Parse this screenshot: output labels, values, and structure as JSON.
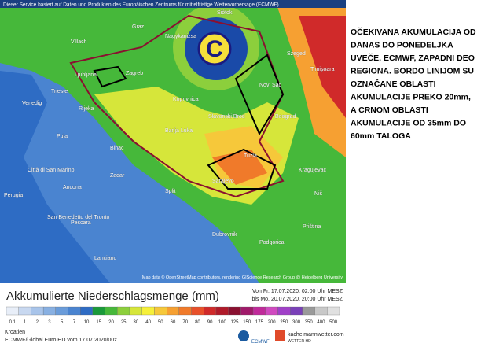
{
  "header": "Dieser Service basiert auf Daten und Produkten des Europäischen Zentrums für mittelfristige Wettervorhersage (ECMWF)",
  "cities": [
    "Graz",
    "Villach",
    "Siófok",
    "Nagykanizsa",
    "Ljubljana",
    "Zagreb",
    "Trieste",
    "Venedig",
    "Rijeka",
    "Pula",
    "Koprivnica",
    "Slavonski Brod",
    "Banja Luka",
    "Bihać",
    "Zadar",
    "Split",
    "Sarajevo",
    "Tuzla",
    "Beograd",
    "Novi Sad",
    "Szeged",
    "Timișoara",
    "Kragujevac",
    "Niš",
    "Priština",
    "Podgorica",
    "Dubrovnik",
    "Ancona",
    "Città di San Marino",
    "San Benedetto del Tronto",
    "Pescara",
    "Perugia",
    "Lanciano"
  ],
  "attribution": "Map data © OpenStreetMap contributors, rendering GIScience Research Group @ Heidelberg University",
  "note": [
    "OČEKIVANA AKUMULACIJA OD",
    "DANAS DO PONEDELJKA",
    "UVEČE, ECMWF, ZAPADNI DEO",
    "REGIONA. BORDO LINIJOM SU",
    "OZNAČANE OBLASTI",
    "AKUMULACIJE PREKO 20mm,",
    "A CRNOM OBLASTI",
    "AKUMULACIJE OD 35mm DO",
    "60mm TALOGA"
  ],
  "legend": {
    "title": "Akkumulierte Niederschlagsmenge (mm)",
    "from": "Von Fr. 17.07.2020, 02:00 Uhr MESZ",
    "to": "bis Mo. 20.07.2020, 20:00 Uhr MESZ",
    "values": [
      0.1,
      1,
      2,
      3,
      5,
      7,
      10,
      15,
      20,
      25,
      30,
      40,
      50,
      60,
      70,
      80,
      90,
      100,
      125,
      150,
      175,
      200,
      250,
      300,
      350,
      400,
      500
    ],
    "colors": [
      "#e8eef8",
      "#c8d8f0",
      "#a8c4ea",
      "#88b0e2",
      "#6a9cda",
      "#4a84d0",
      "#2e6cc4",
      "#1a9a3a",
      "#46b83a",
      "#8ccf3c",
      "#d6e63a",
      "#f6f03a",
      "#f6c83a",
      "#f6a032",
      "#f07a2a",
      "#e8502a",
      "#d02a2a",
      "#b01a2a",
      "#8a1030",
      "#a01a6a",
      "#c02a9a",
      "#d04ac0",
      "#a040c8",
      "#7a40b8",
      "#9a9a9a",
      "#c8c8c8",
      "#e0e0e0"
    ]
  },
  "footer": {
    "country": "Kroatien",
    "model": "ECMWF/Global Euro HD vom  17.07.2020/00z",
    "ecmwf": "ECMWF",
    "site": "kachelmannwetter.com",
    "brand": "WETTER HD"
  }
}
